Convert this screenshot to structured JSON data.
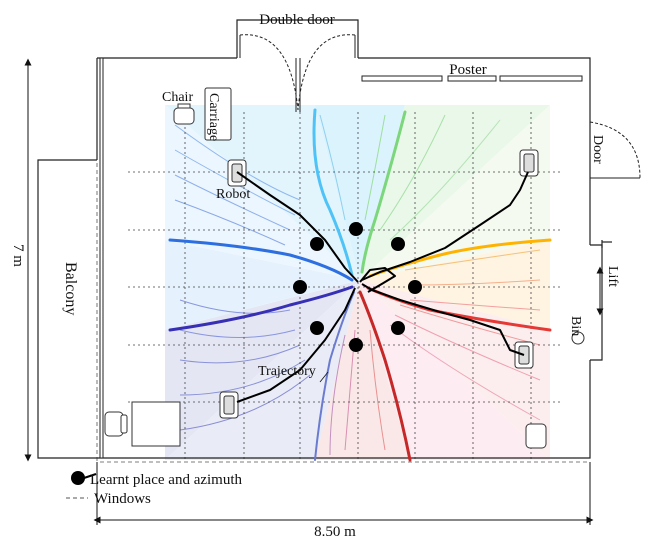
{
  "labels": {
    "double_door": "Double door",
    "poster": "Poster",
    "chair": "Chair",
    "carriage": "Carriage",
    "robot": "Robot",
    "door": "Door",
    "lift": "Lift",
    "bin": "Bin",
    "balcony": "Balcony",
    "trajectory": "Trajectory",
    "height": "7 m",
    "width": "8.50 m"
  },
  "legend": {
    "place_label": "Learnt place and azimuth",
    "windows_label": "Windows"
  },
  "colors": {
    "walls": "#222222",
    "trajectory": "#000000",
    "place_marker": "#000000",
    "sector_colors": [
      "#4fc3f7",
      "#7cd67c",
      "#ffb300",
      "#e53935",
      "#c62828",
      "#4a5fc1",
      "#2d6fe0"
    ]
  }
}
